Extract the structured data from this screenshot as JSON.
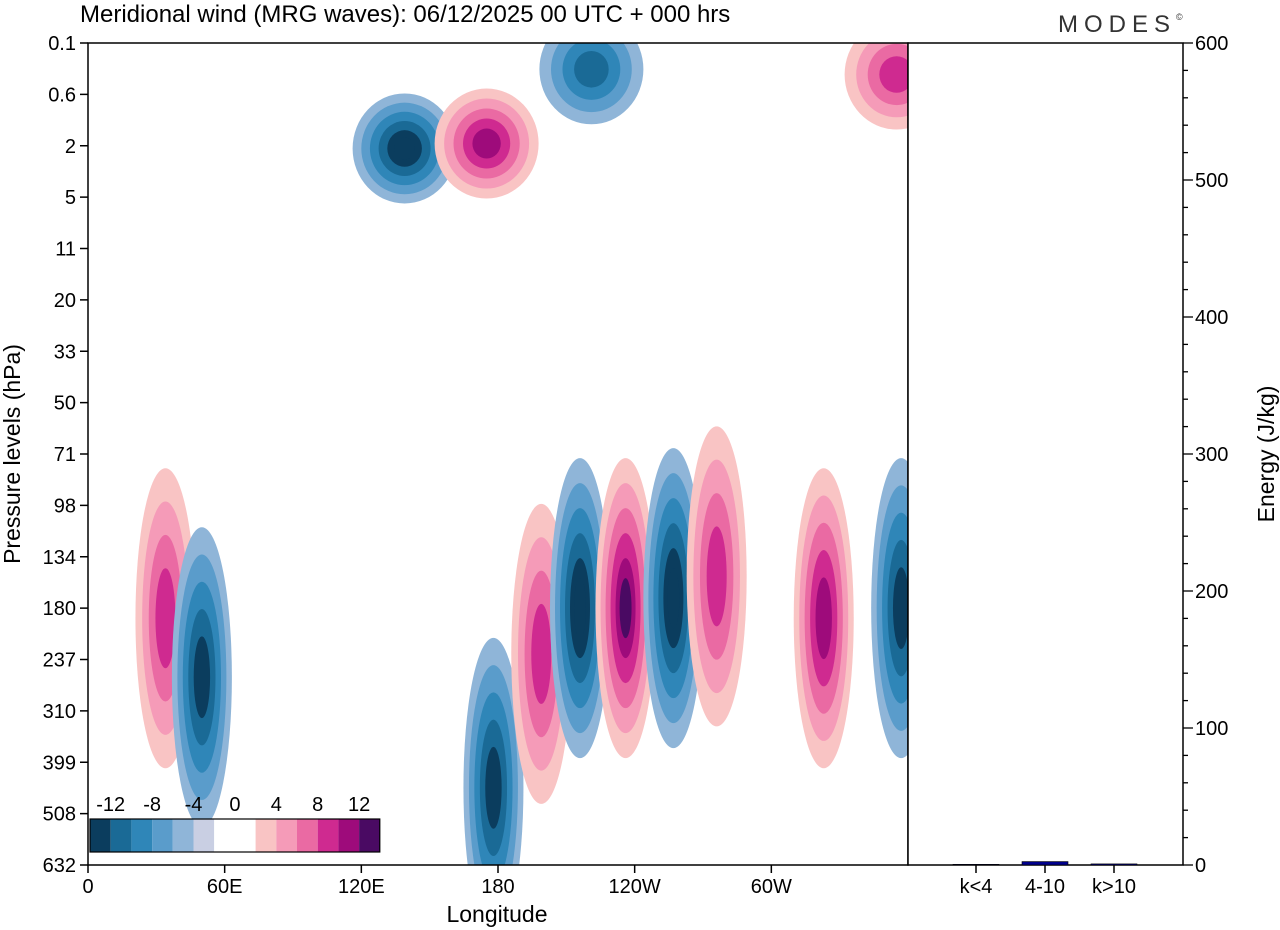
{
  "chart_data": [
    {
      "type": "heatmap",
      "title": "Meridional wind (MRG waves):  06/12/2025  00 UTC  + 000 hrs",
      "xlabel": "Longitude",
      "ylabel": "Pressure levels (hPa)",
      "x_ticks": [
        "0",
        "60E",
        "120E",
        "180",
        "120W",
        "60W"
      ],
      "x_tick_values": [
        0,
        60,
        120,
        180,
        240,
        300
      ],
      "xlim": [
        0,
        360
      ],
      "y_ticks": [
        "0.1",
        "0.6",
        "2",
        "5",
        "11",
        "20",
        "33",
        "50",
        "71",
        "98",
        "134",
        "180",
        "237",
        "310",
        "399",
        "508",
        "632"
      ],
      "colorbar": {
        "levels": [
          -12,
          -10,
          -8,
          -6,
          -4,
          -2,
          0,
          2,
          4,
          6,
          8,
          10,
          12,
          14
        ],
        "labels": [
          "-12",
          "-8",
          "-4",
          "0",
          "4",
          "8",
          "12"
        ],
        "colors": [
          "#0b3d5e",
          "#1a6a96",
          "#2f86b8",
          "#5a9ccb",
          "#8fb5d8",
          "#c9cfe3",
          "#ffffff",
          "#ffffff",
          "#f9c4c4",
          "#f59bb8",
          "#ea6aa3",
          "#cf2a90",
          "#9e0b7b",
          "#4a0a63"
        ]
      },
      "features": [
        {
          "name": "strat-neg-a",
          "lon": 139,
          "level": 2.1,
          "value": -14
        },
        {
          "name": "strat-pos-a",
          "lon": 175,
          "level": 1.9,
          "value": 13
        },
        {
          "name": "strat-neg-b",
          "lon": 221,
          "level": 0.25,
          "value": -11
        },
        {
          "name": "strat-pos-b",
          "lon": 355,
          "level": 0.3,
          "value": 11
        },
        {
          "name": "trop-pos-a",
          "lon": 34,
          "level": 190,
          "value": 11
        },
        {
          "name": "trop-neg-a",
          "lon": 50,
          "level": 260,
          "value": -13
        },
        {
          "name": "trop-neg-b",
          "lon": 178,
          "level": 450,
          "value": -13
        },
        {
          "name": "trop-pos-b",
          "lon": 199,
          "level": 230,
          "value": 11
        },
        {
          "name": "trop-neg-c",
          "lon": 216,
          "level": 180,
          "value": -14
        },
        {
          "name": "trop-pos-c",
          "lon": 236,
          "level": 180,
          "value": 14
        },
        {
          "name": "trop-neg-d",
          "lon": 257,
          "level": 170,
          "value": -14
        },
        {
          "name": "trop-pos-d",
          "lon": 276,
          "level": 150,
          "value": 11
        },
        {
          "name": "trop-pos-e",
          "lon": 323,
          "level": 190,
          "value": 13
        },
        {
          "name": "trop-neg-e",
          "lon": 357,
          "level": 180,
          "value": -13
        }
      ]
    },
    {
      "type": "bar",
      "ylabel": "Energy (J/kg)",
      "ylim": [
        0,
        600
      ],
      "y_ticks": [
        "0",
        "100",
        "200",
        "300",
        "400",
        "500",
        "600"
      ],
      "categories": [
        "k<4",
        "4-10",
        "k>10"
      ],
      "values": [
        0.5,
        2.5,
        0.8
      ],
      "bar_color": "#00008b"
    }
  ],
  "branding": {
    "logo": "MODES",
    "mark": "©"
  }
}
